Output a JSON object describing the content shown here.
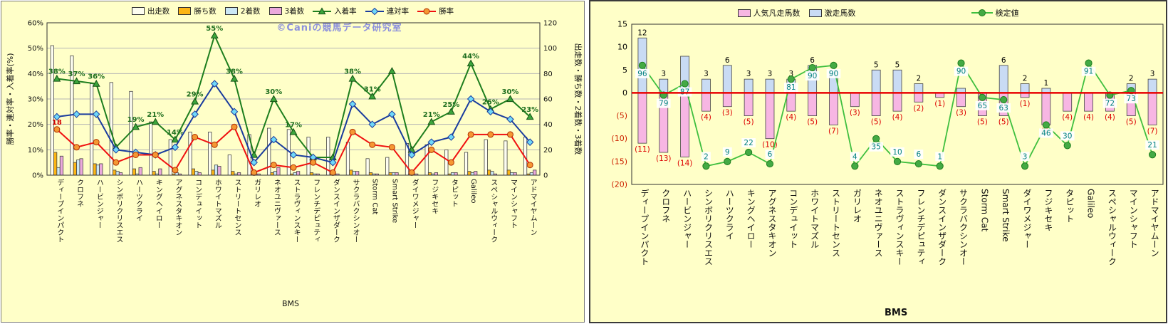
{
  "watermark": "©Caniの競馬データ研究室",
  "chart_data": [
    {
      "type": "bar",
      "panel": "left",
      "xlabel": "BMS",
      "ylabel_left": "勝率・連対率・入着率(%)",
      "ylabel_right": "出走数・勝ち数・2着数・3着数",
      "ylim_left": [
        0,
        60
      ],
      "yticks_left": [
        "0%",
        "10%",
        "20%",
        "30%",
        "40%",
        "50%",
        "60%"
      ],
      "ylim_right": [
        0,
        120
      ],
      "yticks_right": [
        "0",
        "20",
        "40",
        "60",
        "80",
        "100",
        "120"
      ],
      "grid": true,
      "legend_position": "top",
      "categories": [
        "ディープインパクト",
        "クロフネ",
        "ハービンジャー",
        "シンボリクリスエス",
        "ハーツクライ",
        "キングヘイロー",
        "アグネスタキオン",
        "コンデュイット",
        "ホワイトマズル",
        "ストリートセンス",
        "ガリレオ",
        "ネオユニヴァース",
        "ストラヴィンスキー",
        "フレンチデピュティ",
        "ダンスインザダーク",
        "サクラバクシンオー",
        "Storm Cat",
        "Smart Strike",
        "ダイワメジャー",
        "フジキセキ",
        "タピット",
        "Galileo",
        "スペシャルウィーク",
        "マインシャフト",
        "アドマイヤムーン"
      ],
      "bar_series": [
        {
          "name": "出走数",
          "key": "starts",
          "axis": "right",
          "fill": "#FDFDF0",
          "stroke": "#444444",
          "values": [
            102,
            94,
            72,
            73,
            66,
            42,
            28,
            34,
            34,
            16,
            32,
            37,
            36,
            30,
            30,
            26,
            13,
            14,
            25,
            24,
            20,
            18,
            28,
            27,
            30
          ]
        },
        {
          "name": "勝ち数",
          "key": "wins",
          "axis": "right",
          "fill": "#FCB514",
          "stroke": "#444444",
          "values": [
            18,
            10,
            9,
            4,
            5,
            3,
            1,
            5,
            4,
            3,
            1,
            2,
            1,
            2,
            1,
            4,
            2,
            2,
            1,
            2,
            1,
            3,
            4,
            4,
            1
          ]
        },
        {
          "name": "2着数",
          "key": "seconds",
          "axis": "right",
          "fill": "#CBE7F5",
          "stroke": "#444444",
          "values": [
            6,
            12,
            8,
            3,
            1,
            1,
            2,
            3,
            8,
            1,
            1,
            3,
            2,
            1,
            1,
            3,
            1,
            2,
            1,
            1,
            2,
            2,
            3,
            2,
            2
          ]
        },
        {
          "name": "3着数",
          "key": "thirds",
          "axis": "right",
          "fill": "#EBA9DC",
          "stroke": "#444444",
          "values": [
            15,
            13,
            9,
            2,
            6,
            5,
            1,
            2,
            7,
            2,
            1,
            6,
            3,
            1,
            1,
            3,
            1,
            2,
            1,
            2,
            2,
            3,
            1,
            2,
            4
          ]
        }
      ],
      "line_series": [
        {
          "name": "入着率",
          "key": "place-rate",
          "axis": "left",
          "color": "#1E7E1E",
          "marker": "triangle",
          "marker_fill": "#3CA53C",
          "marker_stroke": "#145214",
          "label_color": "#1E6E1E",
          "values": [
            38,
            37,
            36,
            11,
            19,
            21,
            14,
            29,
            55,
            38,
            8,
            30,
            17,
            7,
            7,
            38,
            31,
            41,
            10,
            21,
            25,
            44,
            26,
            30,
            23
          ],
          "labels": [
            "38%",
            "37%",
            "36%",
            "",
            "19%",
            "21%",
            "14%",
            "29%",
            "55%",
            "38%",
            "",
            "30%",
            "17%",
            "",
            "",
            "38%",
            "31%",
            "",
            "",
            "21%",
            "25%",
            "44%",
            "26%",
            "30%",
            "23%"
          ]
        },
        {
          "name": "連対率",
          "key": "quinella-rate",
          "axis": "left",
          "color": "#1A3C9E",
          "marker": "diamond",
          "marker_fill": "#6FD8F8",
          "marker_stroke": "#1A3C9E",
          "label_color": "#1A3C9E",
          "values": [
            23,
            24,
            24,
            10,
            9,
            8,
            11,
            24,
            36,
            25,
            5,
            14,
            8,
            7,
            5,
            28,
            20,
            24,
            8,
            13,
            15,
            30,
            25,
            22,
            13
          ],
          "labels": [
            "",
            "",
            "",
            "",
            "",
            "",
            "",
            "",
            "",
            "",
            "",
            "",
            "",
            "",
            "",
            "",
            "",
            "",
            "",
            "",
            "",
            "",
            "",
            "",
            ""
          ]
        },
        {
          "name": "勝率",
          "key": "win-rate",
          "axis": "left",
          "color": "#F01010",
          "marker": "circle",
          "marker_fill": "#F59733",
          "marker_stroke": "#B03000",
          "label_color": "#D00000",
          "values": [
            18,
            11,
            13,
            5,
            8,
            8,
            2,
            15,
            12,
            19,
            1,
            4,
            3,
            5,
            1,
            17,
            12,
            11,
            1,
            10,
            5,
            16,
            16,
            16,
            4
          ],
          "labels": [
            "18",
            "",
            "",
            "",
            "",
            "",
            "",
            "",
            "",
            "",
            "",
            "",
            "",
            "",
            "",
            "",
            "",
            "",
            "",
            "",
            "",
            "",
            "",
            "",
            ""
          ]
        }
      ]
    },
    {
      "type": "bar",
      "panel": "right",
      "xlabel": "BMS",
      "ylim": [
        -20,
        15
      ],
      "yticks": [
        {
          "label": "15",
          "value": 15,
          "color": "#000000"
        },
        {
          "label": "10",
          "value": 10,
          "color": "#000000"
        },
        {
          "label": "5",
          "value": 5,
          "color": "#000000"
        },
        {
          "label": "0",
          "value": 0,
          "color": "#000000"
        },
        {
          "label": "(5)",
          "value": -5,
          "color": "#CC2200"
        },
        {
          "label": "(10)",
          "value": -10,
          "color": "#CC2200"
        },
        {
          "label": "(15)",
          "value": -15,
          "color": "#CC2200"
        },
        {
          "label": "(20)",
          "value": -20,
          "color": "#CC2200"
        }
      ],
      "zero_line_color": "#E80000",
      "categories": [
        "ディープインパクト",
        "クロフネ",
        "ハービンジャー",
        "シンボリクリスエス",
        "ハーツクライ",
        "キングヘイロー",
        "アグネスタキオン",
        "コンデュイット",
        "ホワイトマズル",
        "ストリートセンス",
        "ガリレオ",
        "ネオユニヴァース",
        "ストラヴィンスキー",
        "フレンチデピュティ",
        "ダンスインザダーク",
        "サクラバクシンオー",
        "Storm Cat",
        "Smart Strike",
        "ダイワメジャー",
        "フジキセキ",
        "タピット",
        "Galileo",
        "スペシャルウィーク",
        "マインシャフト",
        "アドマイヤムーン"
      ],
      "bar_series": [
        {
          "name": "人気凡走馬数",
          "key": "underperform",
          "sign": -1,
          "fill": "#F7B6E3",
          "stroke": "#444444",
          "label_color": "#DD0000",
          "values": [
            11,
            13,
            14,
            4,
            3,
            5,
            10,
            4,
            5,
            7,
            3,
            5,
            4,
            2,
            1,
            3,
            5,
            5,
            1,
            7,
            4,
            4,
            4,
            5,
            7
          ],
          "labels": [
            "(11)",
            "(13)",
            "(14)",
            "(4)",
            "(3)",
            "(5)",
            "(10)",
            "(4)",
            "(5)",
            "(7)",
            "(3)",
            "(5)",
            "(4)",
            "(2)",
            "(1)",
            "(3)",
            "(5)",
            "(5)",
            "(1)",
            "(7)",
            "(4)",
            "(4)",
            "(4)",
            "(5)",
            "(7)"
          ]
        },
        {
          "name": "激走馬数",
          "key": "surprise",
          "sign": 1,
          "fill": "#C9DBF4",
          "stroke": "#444444",
          "label_color": "#000000",
          "values": [
            12,
            3,
            8,
            3,
            6,
            3,
            3,
            3,
            6,
            5,
            0,
            5,
            5,
            2,
            0,
            1,
            0,
            6,
            2,
            1,
            0,
            0,
            0,
            2,
            3
          ],
          "labels": [
            "12",
            "3",
            "",
            "3",
            "6",
            "3",
            "3",
            "3",
            "6",
            "",
            "",
            "5",
            "5",
            "2",
            "",
            "",
            "",
            "6",
            "2",
            "1",
            "",
            "",
            "",
            "2",
            "3"
          ]
        }
      ],
      "line_series": [
        {
          "name": "検定値",
          "key": "test-value",
          "color": "#3FBF3F",
          "marker": "circle",
          "marker_fill": "#44AA44",
          "marker_stroke": "#1E7E1E",
          "label_color": "#008080",
          "values": [
            96,
            79,
            87,
            2,
            9,
            22,
            6,
            81,
            90,
            90,
            4,
            35,
            10,
            6,
            1,
            90,
            65,
            63,
            3,
            46,
            30,
            91,
            72,
            73,
            21
          ],
          "marker_y": [
            6,
            -0.5,
            2,
            -16,
            -15,
            -13,
            -15.5,
            3,
            5.5,
            6,
            -16,
            -10,
            -15,
            -15.5,
            -16,
            6.5,
            -1,
            -1.5,
            -16,
            -7,
            -11.5,
            6.5,
            -0.5,
            0.5,
            -13.5
          ]
        }
      ]
    }
  ]
}
